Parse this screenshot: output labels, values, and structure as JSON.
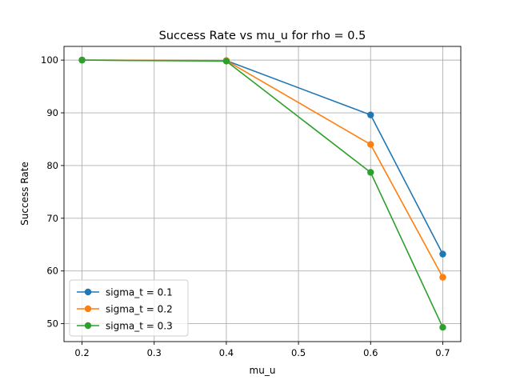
{
  "chart_data": {
    "type": "line",
    "title": "Success Rate vs mu_u for rho = 0.5",
    "xlabel": "mu_u",
    "ylabel": "Success Rate",
    "x": [
      0.2,
      0.4,
      0.6,
      0.7
    ],
    "xlim": [
      0.175,
      0.725
    ],
    "ylim": [
      46.6,
      102.6
    ],
    "xticks": [
      0.2,
      0.3,
      0.4,
      0.5,
      0.6,
      0.7
    ],
    "xtick_labels": [
      "0.2",
      "0.3",
      "0.4",
      "0.5",
      "0.6",
      "0.7"
    ],
    "yticks": [
      50,
      60,
      70,
      80,
      90,
      100
    ],
    "ytick_labels": [
      "50",
      "60",
      "70",
      "80",
      "90",
      "100"
    ],
    "grid": true,
    "legend_position": "bottom-left",
    "marker": "circle",
    "series": [
      {
        "name": "sigma_t = 0.1",
        "color": "#1f77b4",
        "values": [
          100.0,
          99.9,
          89.6,
          63.2
        ]
      },
      {
        "name": "sigma_t = 0.2",
        "color": "#ff7f0e",
        "values": [
          100.0,
          99.9,
          84.0,
          58.8
        ]
      },
      {
        "name": "sigma_t = 0.3",
        "color": "#2ca02c",
        "values": [
          100.0,
          99.8,
          78.7,
          49.3
        ]
      }
    ]
  }
}
